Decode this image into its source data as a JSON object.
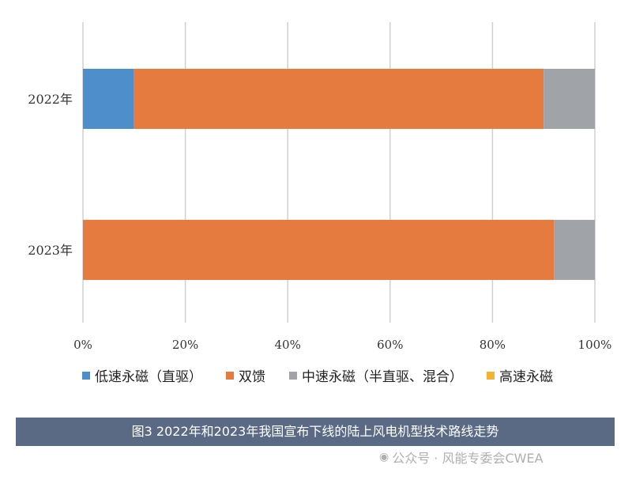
{
  "chart_data": {
    "type": "bar",
    "orientation": "horizontal",
    "stacked": true,
    "categories": [
      "2022年",
      "2023年"
    ],
    "series": [
      {
        "name": "低速永磁（直驱）",
        "color": "#4e8fcb",
        "values": [
          10,
          0
        ]
      },
      {
        "name": "双馈",
        "color": "#e57b3e",
        "values": [
          80,
          92
        ]
      },
      {
        "name": "中速永磁（半直驱、混合）",
        "color": "#a0a3a7",
        "values": [
          10,
          8
        ]
      },
      {
        "name": "高速永磁",
        "color": "#f2b233",
        "values": [
          0,
          0
        ]
      }
    ],
    "x_ticks": [
      "0%",
      "20%",
      "40%",
      "60%",
      "80%",
      "100%"
    ],
    "xlim": [
      0,
      100
    ],
    "grid": "vertical",
    "legend_position": "bottom"
  },
  "caption": "图3 2022年和2023年我国宣布下线的陆上风电机型技术路线走势",
  "watermark": {
    "icon": "wechat-icon",
    "text": "公众号 · 风能专委会CWEA"
  }
}
